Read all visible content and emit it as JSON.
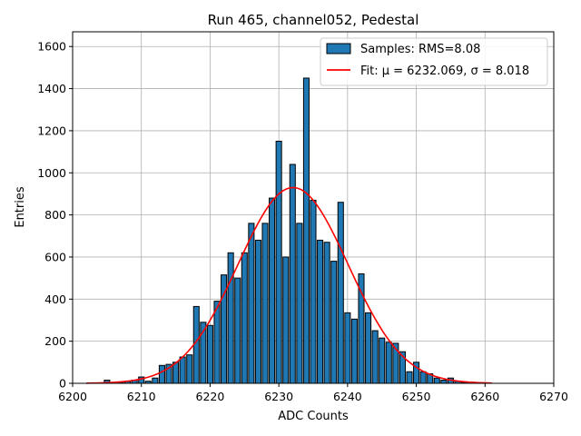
{
  "chart_data": {
    "type": "bar",
    "title": "Run 465, channel052, Pedestal",
    "xlabel": "ADC Counts",
    "ylabel": "Entries",
    "xlim": [
      6200,
      6270
    ],
    "ylim": [
      0,
      1670
    ],
    "x_ticks": [
      6200,
      6210,
      6220,
      6230,
      6240,
      6250,
      6260,
      6270
    ],
    "y_ticks": [
      0,
      200,
      400,
      600,
      800,
      1000,
      1200,
      1400,
      1600
    ],
    "grid": true,
    "legend_position": "top-right",
    "bin_width": 0.8,
    "histogram": {
      "name": "Samples: RMS=8.08",
      "color": "#1f77b4",
      "edge_color": "#000000",
      "bins": [
        {
          "x": 6205,
          "y": 15
        },
        {
          "x": 6206,
          "y": 0
        },
        {
          "x": 6207,
          "y": 5
        },
        {
          "x": 6208,
          "y": 10
        },
        {
          "x": 6209,
          "y": 15
        },
        {
          "x": 6210,
          "y": 30
        },
        {
          "x": 6211,
          "y": 10
        },
        {
          "x": 6212,
          "y": 25
        },
        {
          "x": 6213,
          "y": 85
        },
        {
          "x": 6214,
          "y": 90
        },
        {
          "x": 6215,
          "y": 100
        },
        {
          "x": 6216,
          "y": 125
        },
        {
          "x": 6217,
          "y": 135
        },
        {
          "x": 6218,
          "y": 365
        },
        {
          "x": 6219,
          "y": 290
        },
        {
          "x": 6220,
          "y": 275
        },
        {
          "x": 6221,
          "y": 390
        },
        {
          "x": 6222,
          "y": 515
        },
        {
          "x": 6223,
          "y": 620
        },
        {
          "x": 6224,
          "y": 500
        },
        {
          "x": 6225,
          "y": 620
        },
        {
          "x": 6226,
          "y": 760
        },
        {
          "x": 6227,
          "y": 680
        },
        {
          "x": 6228,
          "y": 760
        },
        {
          "x": 6229,
          "y": 880
        },
        {
          "x": 6230,
          "y": 1150
        },
        {
          "x": 6231,
          "y": 600
        },
        {
          "x": 6232,
          "y": 1040
        },
        {
          "x": 6233,
          "y": 760
        },
        {
          "x": 6234,
          "y": 1450
        },
        {
          "x": 6235,
          "y": 870
        },
        {
          "x": 6236,
          "y": 680
        },
        {
          "x": 6237,
          "y": 670
        },
        {
          "x": 6238,
          "y": 580
        },
        {
          "x": 6239,
          "y": 860
        },
        {
          "x": 6240,
          "y": 335
        },
        {
          "x": 6241,
          "y": 305
        },
        {
          "x": 6242,
          "y": 520
        },
        {
          "x": 6243,
          "y": 335
        },
        {
          "x": 6244,
          "y": 250
        },
        {
          "x": 6245,
          "y": 215
        },
        {
          "x": 6246,
          "y": 195
        },
        {
          "x": 6247,
          "y": 190
        },
        {
          "x": 6248,
          "y": 150
        },
        {
          "x": 6249,
          "y": 55
        },
        {
          "x": 6250,
          "y": 100
        },
        {
          "x": 6251,
          "y": 55
        },
        {
          "x": 6252,
          "y": 45
        },
        {
          "x": 6253,
          "y": 25
        },
        {
          "x": 6254,
          "y": 15
        },
        {
          "x": 6255,
          "y": 25
        },
        {
          "x": 6256,
          "y": 10
        },
        {
          "x": 6257,
          "y": 5
        },
        {
          "x": 6258,
          "y": 5
        },
        {
          "x": 6259,
          "y": 0
        },
        {
          "x": 6260,
          "y": 0
        }
      ]
    },
    "fit": {
      "name": "Fit: μ = 6232.069, σ = 8.018",
      "color": "#ff0000",
      "mu": 6232.069,
      "sigma": 8.018,
      "amplitude": 930,
      "x_range": [
        6202,
        6261
      ]
    }
  }
}
